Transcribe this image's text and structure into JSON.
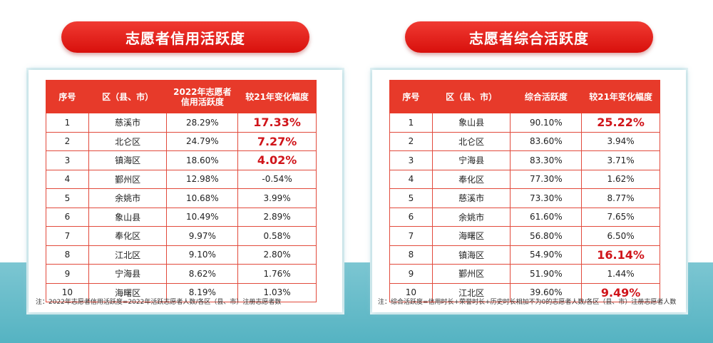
{
  "left": {
    "title": "志愿者信用活跃度",
    "headers": [
      "序号",
      "区（县、市）",
      "2022年志愿者\n信用活跃度",
      "较21年变化幅度"
    ],
    "header_col3_line1": "2022年志愿者",
    "header_col3_line2": "信用活跃度",
    "rows": [
      [
        "1",
        "慈溪市",
        "28.29%",
        "17.33%"
      ],
      [
        "2",
        "北仑区",
        "24.79%",
        "7.27%"
      ],
      [
        "3",
        "镇海区",
        "18.60%",
        "4.02%"
      ],
      [
        "4",
        "鄞州区",
        "12.98%",
        "-0.54%"
      ],
      [
        "5",
        "余姚市",
        "10.68%",
        "3.99%"
      ],
      [
        "6",
        "象山县",
        "10.49%",
        "2.89%"
      ],
      [
        "7",
        "奉化区",
        "9.97%",
        "0.58%"
      ],
      [
        "8",
        "江北区",
        "9.10%",
        "2.80%"
      ],
      [
        "9",
        "宁海县",
        "8.62%",
        "1.76%"
      ],
      [
        "10",
        "海曙区",
        "8.19%",
        "1.03%"
      ]
    ],
    "highlight_rows": [
      0,
      1,
      2
    ],
    "note": "注：2022年志愿者信用活跃度=2022年活跃志愿者人数/各区（县、市）注册志愿者数"
  },
  "right": {
    "title": "志愿者综合活跃度",
    "headers": [
      "序号",
      "区（县、市）",
      "综合活跃度",
      "较21年变化幅度"
    ],
    "rows": [
      [
        "1",
        "象山县",
        "90.10%",
        "25.22%"
      ],
      [
        "2",
        "北仑区",
        "83.60%",
        "3.94%"
      ],
      [
        "3",
        "宁海县",
        "83.30%",
        "3.71%"
      ],
      [
        "4",
        "奉化区",
        "77.30%",
        "1.62%"
      ],
      [
        "5",
        "慈溪市",
        "73.30%",
        "8.77%"
      ],
      [
        "6",
        "余姚市",
        "61.60%",
        "7.65%"
      ],
      [
        "7",
        "海曙区",
        "56.80%",
        "6.50%"
      ],
      [
        "8",
        "镇海区",
        "54.90%",
        "16.14%"
      ],
      [
        "9",
        "鄞州区",
        "51.90%",
        "1.44%"
      ],
      [
        "10",
        "江北区",
        "39.60%",
        "9.49%"
      ]
    ],
    "highlight_rows": [
      0,
      7,
      9
    ],
    "note": "注：综合活跃度=信用时长+荣誉时长+历史时长相加不为0的志愿者人数/各区（县、市）注册志愿者人数"
  },
  "colors": {
    "header_red": "#e73a2a",
    "highlight_red": "#d0141a",
    "band_teal": "#55b3c2"
  }
}
